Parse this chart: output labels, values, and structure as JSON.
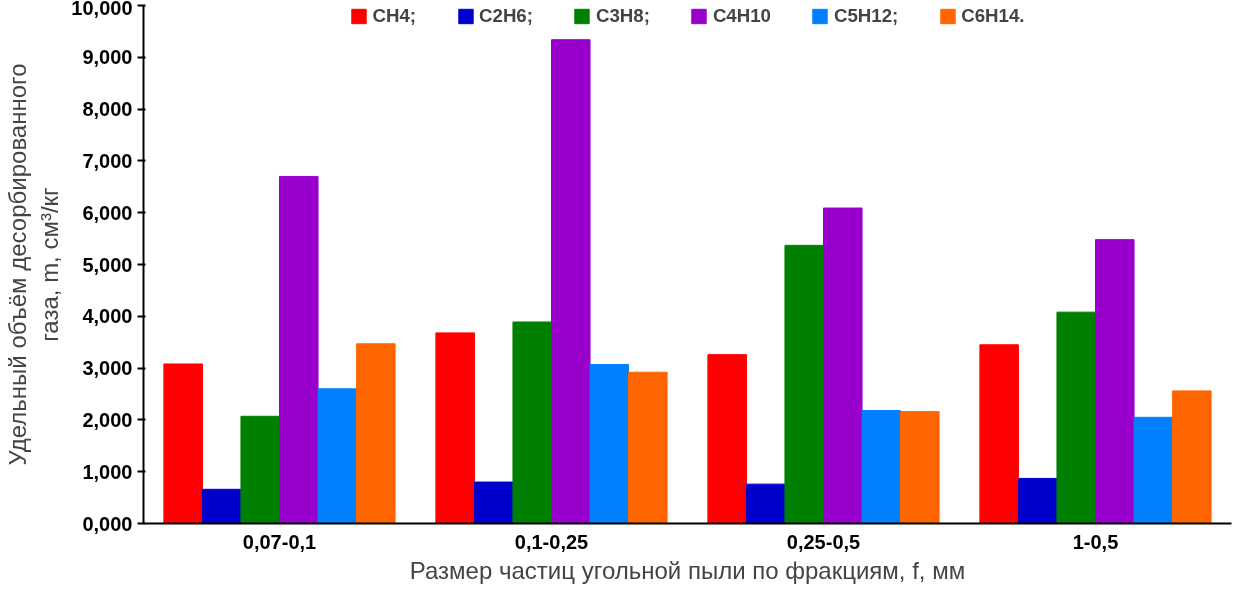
{
  "chart_data": {
    "type": "bar",
    "xlabel": "Размер частиц угольной пыли по фракциям, f, мм",
    "ylabel": "Удельный объём десорбированного\nгаза, m, см³/кг",
    "categories": [
      "0,07-0,1",
      "0,1-0,25",
      "0,25-0,5",
      "1-0,5"
    ],
    "series": [
      {
        "name": "CH4;",
        "color": "#ff0000",
        "values": [
          3.08,
          3.68,
          3.26,
          3.45
        ]
      },
      {
        "name": "C2H6;",
        "color": "#0000cc",
        "values": [
          0.66,
          0.8,
          0.76,
          0.87
        ]
      },
      {
        "name": "C3H8;",
        "color": "#008000",
        "values": [
          2.07,
          3.89,
          5.37,
          4.08
        ]
      },
      {
        "name": "C4H10",
        "color": "#9900cc",
        "values": [
          6.7,
          9.34,
          6.09,
          5.48
        ]
      },
      {
        "name": "C5H12;",
        "color": "#0080ff",
        "values": [
          2.6,
          3.07,
          2.18,
          2.05
        ]
      },
      {
        "name": "C6H14.",
        "color": "#ff6600",
        "values": [
          3.47,
          2.92,
          2.16,
          2.56
        ]
      }
    ],
    "ylim": [
      0,
      10
    ],
    "yticks": [
      {
        "value": 0,
        "label": "0,000"
      },
      {
        "value": 1,
        "label": "1,000"
      },
      {
        "value": 2,
        "label": "2,000"
      },
      {
        "value": 3,
        "label": "3,000"
      },
      {
        "value": 4,
        "label": "4,000"
      },
      {
        "value": 5,
        "label": "5,000"
      },
      {
        "value": 6,
        "label": "6,000"
      },
      {
        "value": 7,
        "label": "7,000"
      },
      {
        "value": 8,
        "label": "8,000"
      },
      {
        "value": 9,
        "label": "9,000"
      },
      {
        "value": 10,
        "label": "10,000"
      }
    ],
    "grid": false,
    "legend": "top"
  }
}
